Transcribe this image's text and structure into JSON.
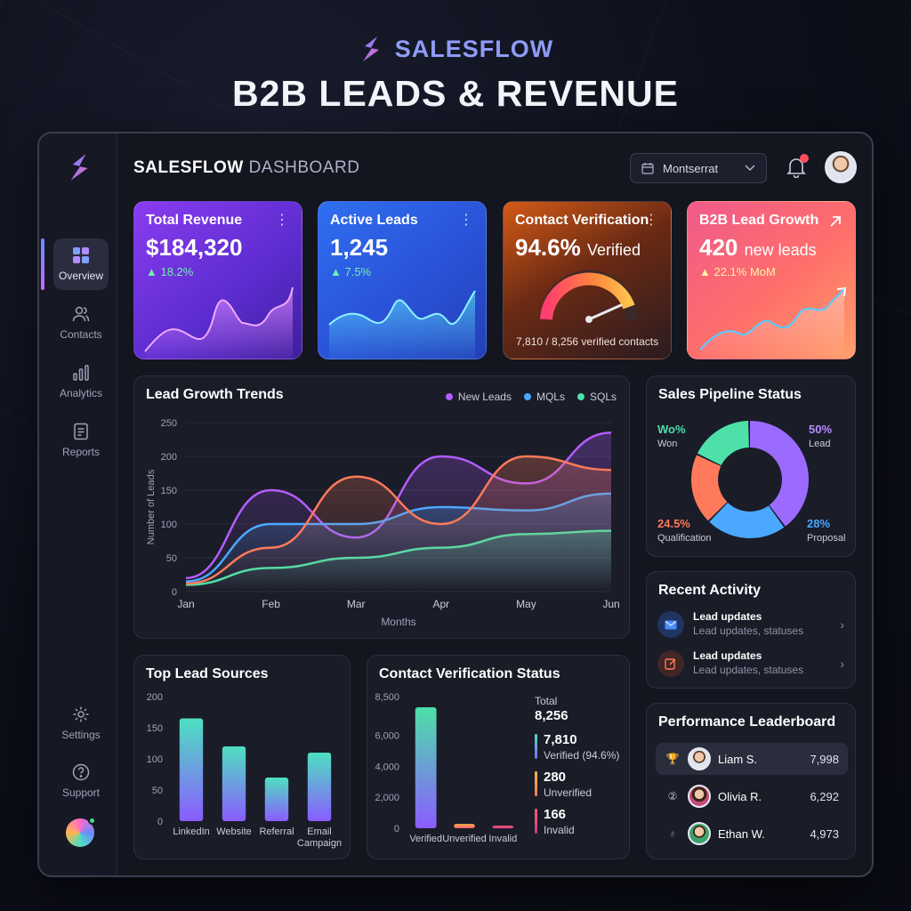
{
  "brand": {
    "name": "SALESFLOW",
    "headline": "B2B LEADS & REVENUE"
  },
  "topbar": {
    "title_bold": "SALESFLOW",
    "title_light": "DASHBOARD",
    "font_select": "Montserrat",
    "notification_count": "1"
  },
  "sidebar": {
    "items": [
      {
        "label": "Overview",
        "icon": "grid-icon",
        "active": true
      },
      {
        "label": "Contacts",
        "icon": "users-icon"
      },
      {
        "label": "Analytics",
        "icon": "bar-chart-icon"
      },
      {
        "label": "Reports",
        "icon": "document-icon"
      }
    ],
    "bottom_items": [
      {
        "label": "Settings",
        "icon": "gear-icon"
      },
      {
        "label": "Support",
        "icon": "help-icon"
      }
    ]
  },
  "kpis": {
    "revenue": {
      "title": "Total Revenue",
      "value": "$184,320",
      "delta": "18.2%"
    },
    "leads": {
      "title": "Active Leads",
      "value": "1,245",
      "delta": "7.5%"
    },
    "verification": {
      "title": "Contact Verification",
      "value": "94.6%",
      "unit": "Verified",
      "footer": "7,810 / 8,256 verified contacts",
      "percent": 94.6
    },
    "growth": {
      "title": "B2B Lead Growth",
      "value": "420",
      "unit": "new leads",
      "delta": "22.1% MoM"
    }
  },
  "lead_trends": {
    "title": "Lead Growth Trends",
    "legend": [
      "New Leads",
      "MQLs",
      "SQLs"
    ],
    "xlabel": "Months",
    "ylabel": "Number of Leads"
  },
  "pipeline": {
    "title": "Sales Pipeline Status",
    "won_pct": "Wo%",
    "won_label": "Won",
    "lead_pct": "50%",
    "lead_label": "Lead",
    "qual_pct": "24.5%",
    "qual_label": "Qualification",
    "prop_pct": "28%",
    "prop_label": "Proposal"
  },
  "activity": {
    "title": "Recent Activity",
    "items": [
      {
        "title": "Lead updates",
        "sub": "Lead updates, statuses"
      },
      {
        "title": "Lead updates",
        "sub": "Lead updates, statuses"
      }
    ]
  },
  "leaderboard": {
    "title": "Performance Leaderboard",
    "rows": [
      {
        "name": "Liam S.",
        "score": "7,998"
      },
      {
        "name": "Olivia R.",
        "score": "6,292"
      },
      {
        "name": "Ethan W.",
        "score": "4,973"
      }
    ]
  },
  "lead_sources": {
    "title": "Top Lead Sources"
  },
  "contact_verification": {
    "title": "Contact Verification Status",
    "total_label": "Total",
    "total_value": "8,256",
    "stats": [
      {
        "value": "7,810",
        "label": "Verified (94.6%)",
        "color": "#4de0c0"
      },
      {
        "value": "280",
        "label": "Unverified",
        "color": "#ffb44d"
      },
      {
        "value": "166",
        "label": "Invalid",
        "color": "#ff5e6e"
      }
    ]
  },
  "chart_data": [
    {
      "type": "line",
      "title": "Lead Growth Trends",
      "xlabel": "Months",
      "ylabel": "Number of Leads",
      "x": [
        "Jan",
        "Feb",
        "Mar",
        "Apr",
        "May",
        "Jun"
      ],
      "ylim": [
        0,
        250
      ],
      "yticks": [
        0,
        50,
        100,
        150,
        200,
        250
      ],
      "series": [
        {
          "name": "New Leads",
          "color": "#b45cff",
          "values": [
            20,
            150,
            80,
            200,
            160,
            235
          ]
        },
        {
          "name": "MQLs",
          "color": "#4aa8ff",
          "values": [
            15,
            100,
            100,
            125,
            120,
            145
          ]
        },
        {
          "name": "SQLs",
          "color": "#4de0a8",
          "values": [
            10,
            35,
            50,
            65,
            85,
            90
          ]
        },
        {
          "name": "",
          "color": "#ff7a5a",
          "values": [
            12,
            65,
            170,
            100,
            200,
            180
          ]
        }
      ]
    },
    {
      "type": "bar",
      "title": "Top Lead Sources",
      "categories": [
        "LinkedIn",
        "Website",
        "Referral",
        "Email Campaign"
      ],
      "values": [
        165,
        120,
        70,
        110
      ],
      "ylim": [
        0,
        200
      ],
      "yticks": [
        0,
        50,
        100,
        150,
        200
      ]
    },
    {
      "type": "bar",
      "title": "Contact Verification Status",
      "categories": [
        "Verified",
        "Unverified",
        "Invalid"
      ],
      "values": [
        7810,
        280,
        166
      ],
      "ylim": [
        0,
        8500
      ],
      "yticks": [
        0,
        2000,
        4000,
        6000,
        8500
      ],
      "ytick_labels": [
        "0",
        "2,000",
        "4,000",
        "6,000",
        "8,500"
      ]
    },
    {
      "type": "pie",
      "title": "Sales Pipeline Status",
      "labels": [
        "Lead",
        "Proposal",
        "Qualification",
        "Won"
      ],
      "values": [
        50,
        28,
        24.5,
        22
      ],
      "colors": [
        "#9b6bff",
        "#4aa8ff",
        "#ff7a5a",
        "#4de0a8"
      ]
    }
  ]
}
